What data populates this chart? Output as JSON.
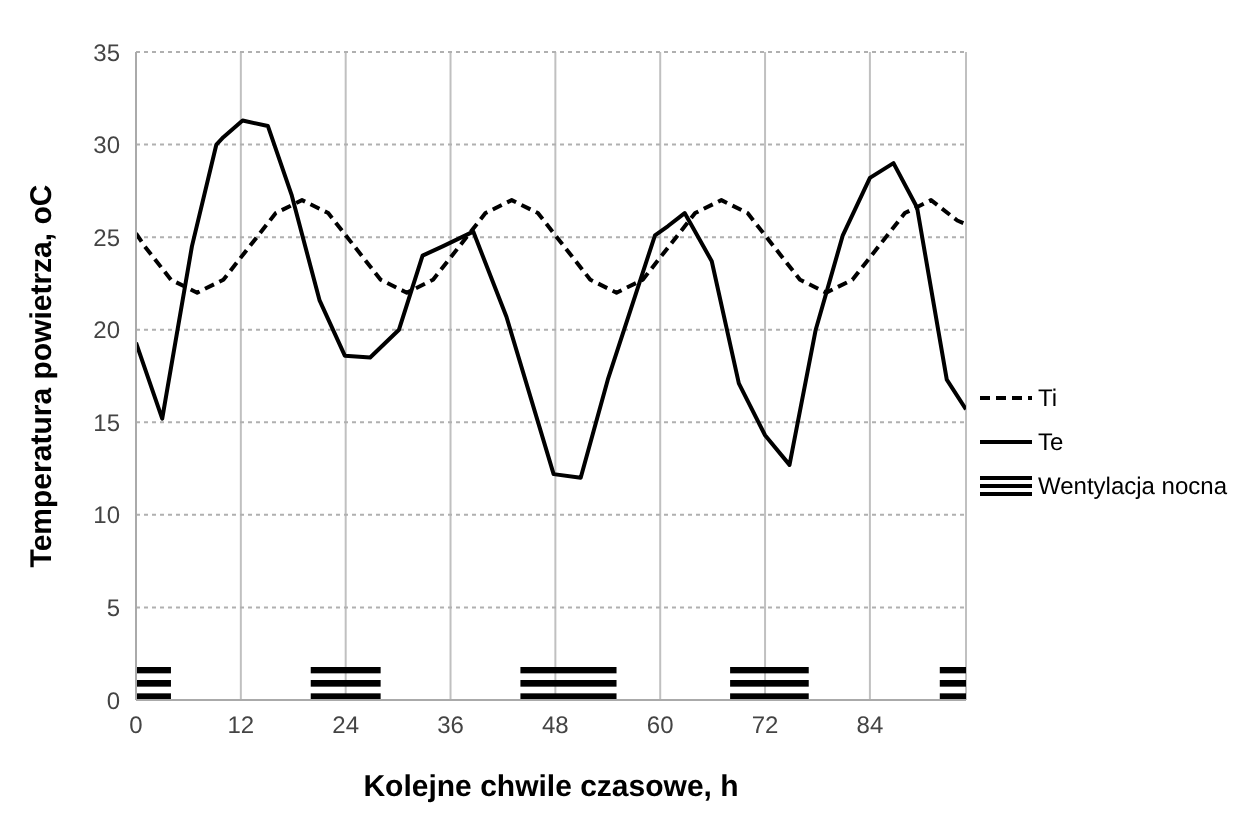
{
  "chart_data": {
    "type": "line",
    "xlabel": "Kolejne chwile czasowe, h",
    "ylabel": "Temperatura powietrza, oC",
    "xlim": [
      0,
      95
    ],
    "xticks": [
      0,
      12,
      24,
      36,
      48,
      60,
      72,
      84
    ],
    "ylim": [
      0,
      35
    ],
    "yticks": [
      0,
      5,
      10,
      15,
      20,
      25,
      30,
      35
    ],
    "grid": true,
    "legend": "right",
    "series": [
      {
        "name": "Ti",
        "color": "#000000",
        "line_style": "dashed",
        "x": [
          0,
          1,
          4,
          7,
          10,
          13,
          16,
          19,
          22,
          25,
          28,
          31,
          34,
          37,
          40,
          43,
          46,
          49,
          52,
          55,
          58,
          61,
          64,
          67,
          70,
          73,
          76,
          79,
          82,
          85,
          88,
          91,
          94,
          95
        ],
        "values": [
          25.2,
          24.5,
          22.7,
          22,
          22.7,
          24.5,
          26.3,
          27,
          26.3,
          24.5,
          22.7,
          22,
          22.7,
          24.5,
          26.3,
          27,
          26.3,
          24.5,
          22.7,
          22,
          22.7,
          24.5,
          26.3,
          27,
          26.3,
          24.5,
          22.7,
          22,
          22.7,
          24.5,
          26.3,
          27,
          25.9,
          25.7
        ]
      },
      {
        "name": "Te",
        "color": "#000000",
        "line_style": "solid",
        "x": [
          0,
          3,
          6.4,
          9.2,
          10,
          12.2,
          15.1,
          17.8,
          21,
          23.9,
          26.8,
          30.1,
          32.8,
          35.1,
          38.6,
          42.4,
          47.8,
          50.9,
          54,
          59.4,
          60.9,
          62.8,
          65.9,
          69,
          72,
          74.8,
          77.8,
          80.9,
          84,
          86.7,
          89.4,
          92.8,
          95
        ],
        "values": [
          19.3,
          15.2,
          24.5,
          30,
          30.4,
          31.3,
          31,
          27.3,
          21.6,
          18.6,
          18.5,
          20,
          24,
          24.5,
          25.3,
          20.7,
          12.2,
          12,
          17.3,
          25.1,
          25.6,
          26.3,
          23.7,
          17.1,
          14.3,
          12.7,
          20,
          25.1,
          28.2,
          29,
          26.6,
          17.3,
          15.7
        ]
      },
      {
        "name": "Wentylacja nocna",
        "type": "area",
        "color": "#000000",
        "x": [
          0,
          4,
          12,
          20,
          28,
          36,
          44,
          55,
          62,
          68,
          77,
          85,
          92,
          95
        ],
        "values": [
          1.8,
          1.8,
          null,
          1.8,
          1.8,
          null,
          1.8,
          1.8,
          null,
          1.8,
          1.8,
          null,
          1.8,
          1.8
        ]
      }
    ]
  }
}
